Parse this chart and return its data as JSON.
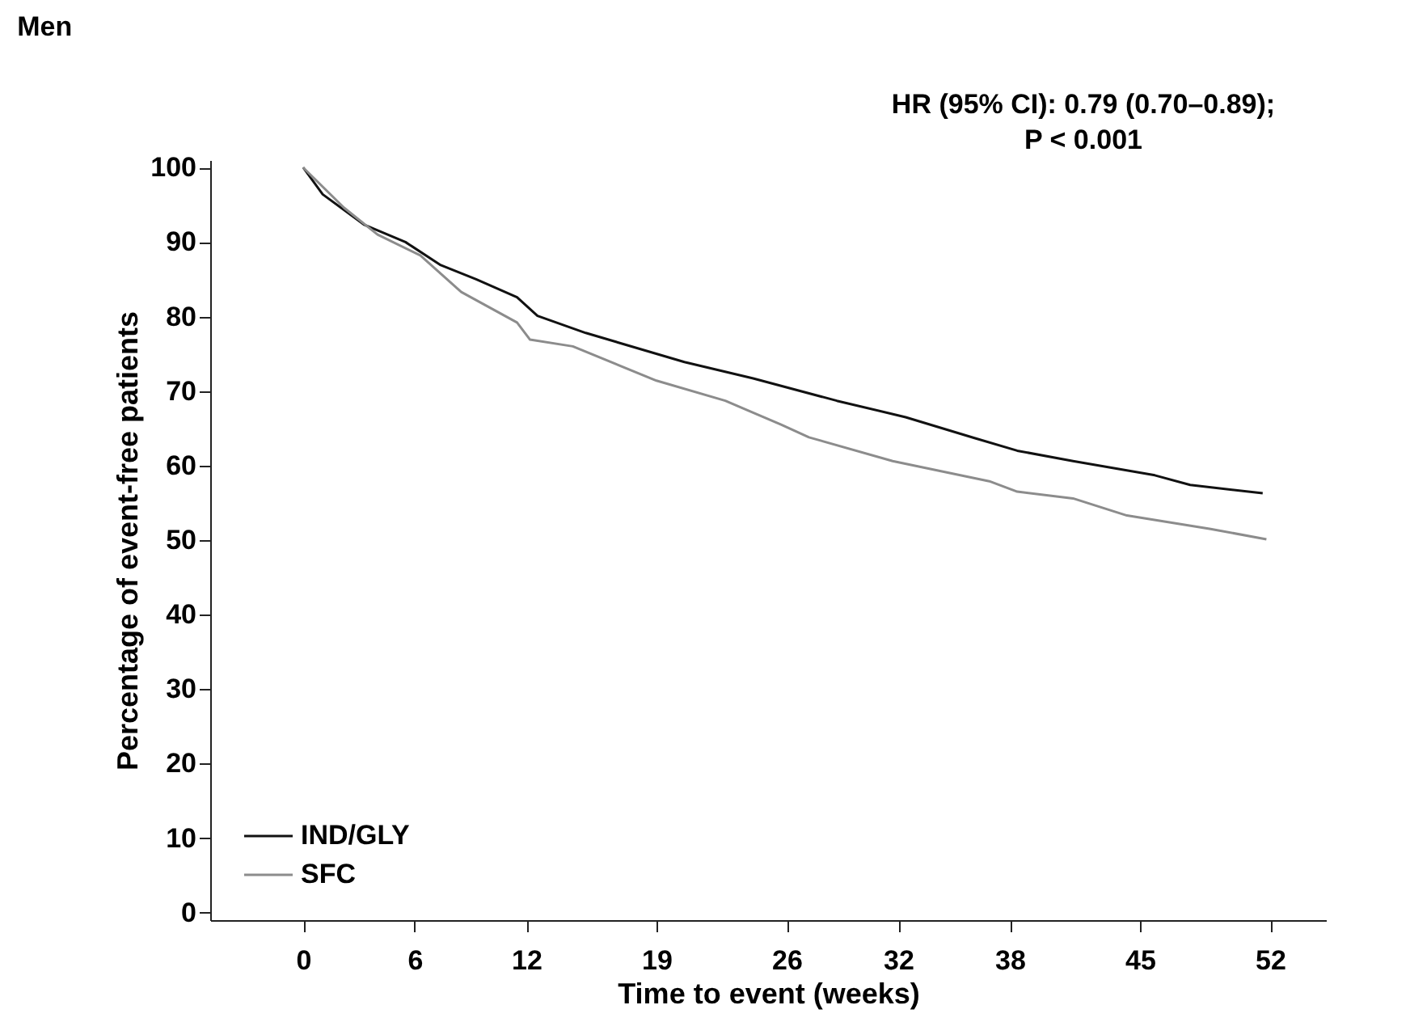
{
  "chart_data": {
    "type": "line",
    "title": "Men",
    "xlabel": "Time to event (weeks)",
    "ylabel": "Percentage of event-free patients",
    "annotations": [
      "HR (95% CI): 0.79 (0.70–0.89);",
      "P < 0.001"
    ],
    "xlim": [
      -5,
      55
    ],
    "xticks": [
      0,
      6,
      12,
      19,
      26,
      32,
      38,
      45,
      52
    ],
    "ylim": [
      -1,
      101
    ],
    "yticks": [
      0,
      10,
      20,
      30,
      40,
      50,
      60,
      70,
      80,
      90,
      100
    ],
    "grid": false,
    "legend": "bottom left",
    "line_style": "solid",
    "marker": "none",
    "series": [
      {
        "name": "IND/GLY",
        "color": "#111111",
        "x": [
          0,
          1.05,
          3.3,
          5.5,
          7.4,
          9.3,
          11.5,
          12.6,
          15.2,
          20.5,
          24.2,
          28.7,
          32.4,
          36.1,
          38.4,
          41.4,
          45.8,
          47.7,
          51.6
        ],
        "values": [
          100,
          96.4,
          92.3,
          90,
          86.9,
          85,
          82.6,
          80.1,
          77.8,
          73.9,
          71.7,
          68.7,
          66.5,
          63.7,
          62,
          60.6,
          58.7,
          57.4,
          56.3
        ]
      },
      {
        "name": "SFC",
        "color": "#8c8c8c",
        "x": [
          0,
          2.2,
          4,
          6.3,
          8.5,
          11.5,
          12.2,
          14.5,
          19,
          22.7,
          25.7,
          27.2,
          31.7,
          36.9,
          38.4,
          41.4,
          44.3,
          48.8,
          51.8
        ],
        "values": [
          100,
          94.6,
          91,
          88.2,
          83.3,
          79.2,
          76.9,
          76,
          71.4,
          68.7,
          65.5,
          63.8,
          60.6,
          57.9,
          56.5,
          55.6,
          53.3,
          51.5,
          50.1
        ]
      }
    ]
  }
}
